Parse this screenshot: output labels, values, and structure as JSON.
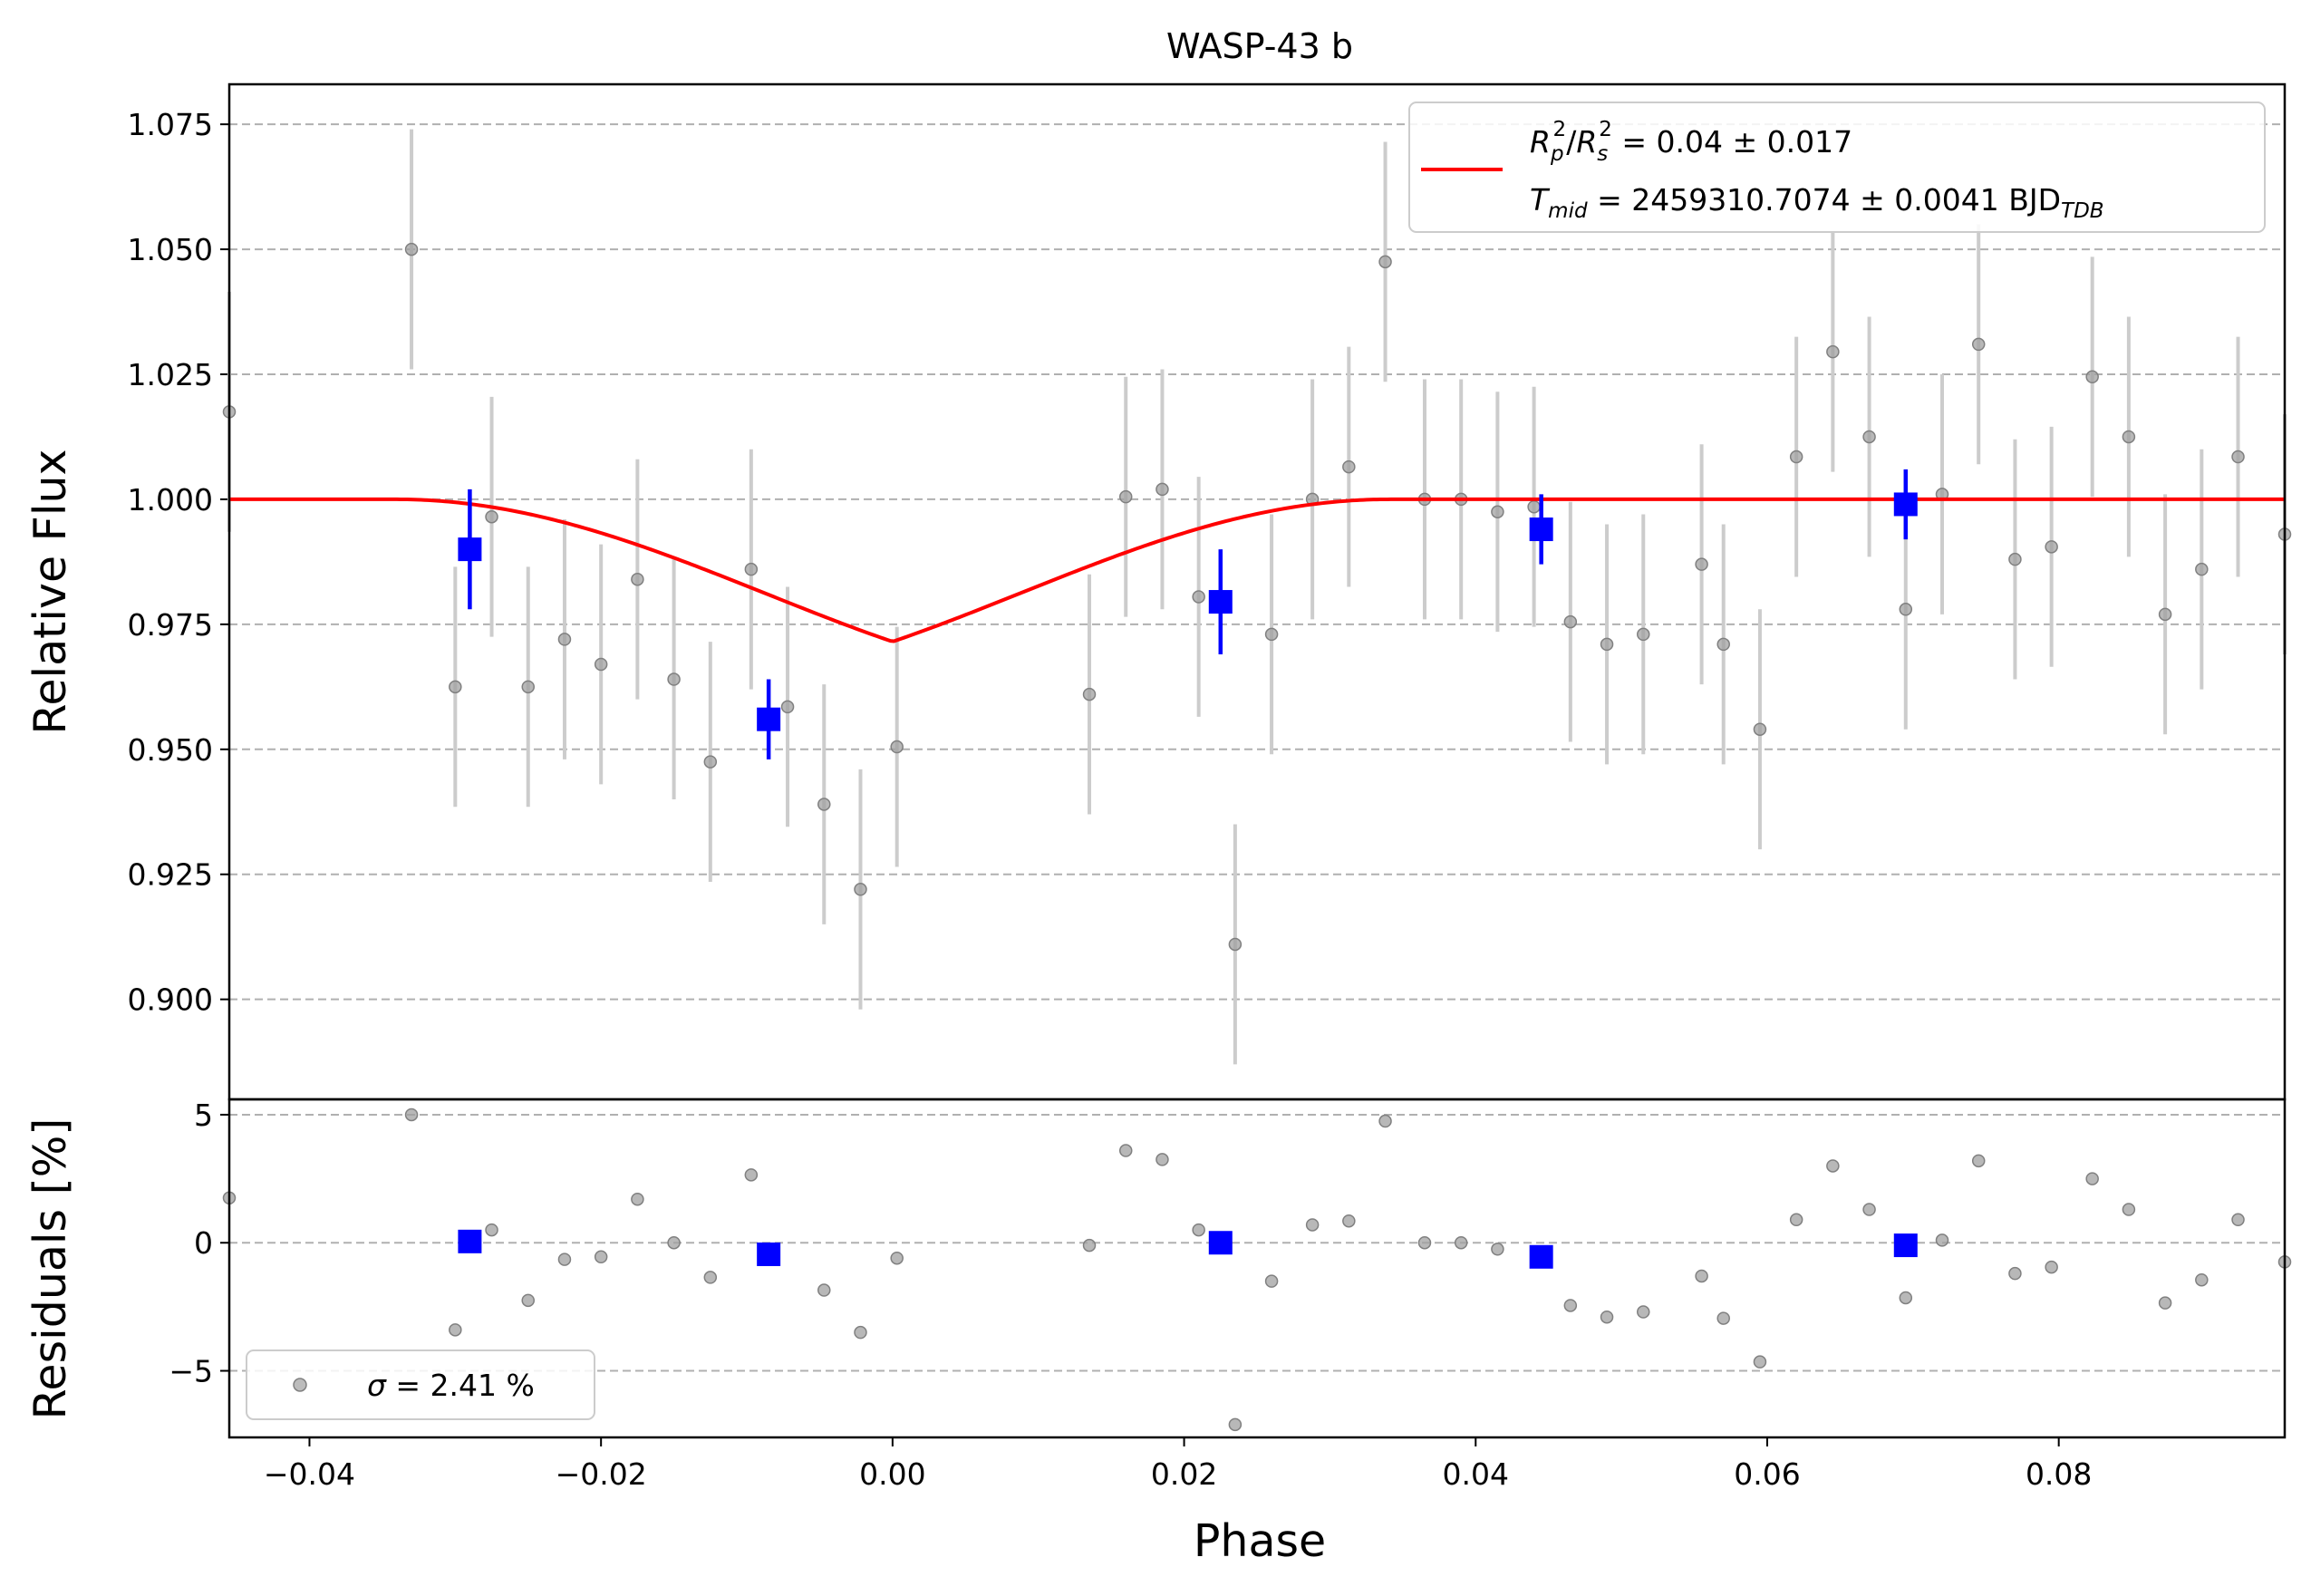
{
  "chart_data": {
    "type": "scatter",
    "title": "WASP-43 b",
    "xlabel": "Phase",
    "xlim": [
      -0.0455,
      0.0955
    ],
    "xticks": [
      "−0.04",
      "−0.02",
      "0.00",
      "0.02",
      "0.04",
      "0.06",
      "0.08"
    ],
    "xtick_values": [
      -0.04,
      -0.02,
      0.0,
      0.02,
      0.04,
      0.06,
      0.08
    ],
    "grid": true,
    "top_panel": {
      "ylabel": "Relative Flux",
      "ylim": [
        0.88,
        1.083
      ],
      "yticks": [
        "0.900",
        "0.925",
        "0.950",
        "0.975",
        "1.000",
        "1.025",
        "1.050",
        "1.075"
      ],
      "ytick_values": [
        0.9,
        0.925,
        0.95,
        0.975,
        1.0,
        1.025,
        1.05,
        1.075
      ],
      "legend": {
        "placement": "upper-right",
        "line1_lhs": "R",
        "line1_rhs": " = 0.04 ± 0.017",
        "line2_lhs": "T",
        "line2_sub": "mid",
        "line2_rhs": " = 2459310.7074 ± 0.0041 BJD",
        "line2_unit_sub": "TDB"
      },
      "colors": {
        "data": "#a0a0a0",
        "binned": "#0000ff",
        "model": "#ff0000",
        "errorbar": "#cccccc"
      },
      "data_error": 0.024,
      "data": [
        [
          -0.0455,
          1.0175
        ],
        [
          -0.033,
          1.05
        ],
        [
          -0.03,
          0.9625
        ],
        [
          -0.0275,
          0.9965
        ],
        [
          -0.025,
          0.9625
        ],
        [
          -0.0225,
          0.972
        ],
        [
          -0.02,
          0.967
        ],
        [
          -0.0175,
          0.984
        ],
        [
          -0.015,
          0.964
        ],
        [
          -0.0125,
          0.9475
        ],
        [
          -0.0097,
          0.986
        ],
        [
          -0.0072,
          0.9585
        ],
        [
          -0.0047,
          0.939
        ],
        [
          -0.0022,
          0.922
        ],
        [
          0.0003,
          0.9505
        ],
        [
          0.0135,
          0.961
        ],
        [
          0.016,
          1.0005
        ],
        [
          0.0185,
          1.002
        ],
        [
          0.021,
          0.9805
        ],
        [
          0.0235,
          0.911
        ],
        [
          0.026,
          0.973
        ],
        [
          0.0288,
          1.0
        ],
        [
          0.0313,
          1.0065
        ],
        [
          0.0338,
          1.0475
        ],
        [
          0.0365,
          1.0
        ],
        [
          0.039,
          1.0
        ],
        [
          0.0415,
          0.9975
        ],
        [
          0.044,
          0.9985
        ],
        [
          0.0465,
          0.9755
        ],
        [
          0.049,
          0.971
        ],
        [
          0.0515,
          0.973
        ],
        [
          0.0555,
          0.987
        ],
        [
          0.057,
          0.971
        ],
        [
          0.0595,
          0.954
        ],
        [
          0.062,
          1.0085
        ],
        [
          0.0645,
          1.0295
        ],
        [
          0.067,
          1.0125
        ],
        [
          0.0695,
          0.978
        ],
        [
          0.072,
          1.001
        ],
        [
          0.0745,
          1.031
        ],
        [
          0.077,
          0.988
        ],
        [
          0.0795,
          0.9905
        ],
        [
          0.0823,
          1.0245
        ],
        [
          0.0848,
          1.0125
        ],
        [
          0.0873,
          0.977
        ],
        [
          0.0898,
          0.986
        ],
        [
          0.0923,
          1.0085
        ],
        [
          0.0955,
          0.993
        ]
      ],
      "binned": [
        [
          -0.029,
          0.99,
          0.012
        ],
        [
          -0.0085,
          0.956,
          0.008
        ],
        [
          0.0225,
          0.9795,
          0.0105
        ],
        [
          0.0445,
          0.994,
          0.007
        ],
        [
          0.0695,
          0.999,
          0.007
        ]
      ],
      "model": {
        "baseline": 1.0,
        "depth_min": 0.957,
        "t_mid": 0.0,
        "t1": -0.0341,
        "t2": -0.0165,
        "t3": 0.0165,
        "t4": 0.0341
      }
    },
    "bottom_panel": {
      "ylabel": "Residuals [%]",
      "ylim": [
        -7.6,
        5.6
      ],
      "yticks": [
        "−5",
        "0",
        "5"
      ],
      "ytick_values": [
        -5,
        0,
        5
      ],
      "legend": {
        "placement": "lower-left",
        "label_prefix": "σ",
        "label_rest": " = 2.41 %"
      },
      "residuals": [
        [
          -0.0455,
          1.75
        ],
        [
          -0.033,
          5.0
        ],
        [
          -0.03,
          -3.4
        ],
        [
          -0.0275,
          0.5
        ],
        [
          -0.025,
          -2.25
        ],
        [
          -0.0225,
          -0.65
        ],
        [
          -0.02,
          -0.55
        ],
        [
          -0.0175,
          1.7
        ],
        [
          -0.015,
          0.0
        ],
        [
          -0.0125,
          -1.35
        ],
        [
          -0.0097,
          2.65
        ],
        [
          -0.0047,
          -1.85
        ],
        [
          -0.0022,
          -3.5
        ],
        [
          0.0003,
          -0.6
        ],
        [
          0.0135,
          -0.1
        ],
        [
          0.016,
          3.6
        ],
        [
          0.0185,
          3.25
        ],
        [
          0.021,
          0.5
        ],
        [
          0.0235,
          -7.1
        ],
        [
          0.026,
          -1.5
        ],
        [
          0.0288,
          0.7
        ],
        [
          0.0313,
          0.85
        ],
        [
          0.0338,
          4.75
        ],
        [
          0.0365,
          0.0
        ],
        [
          0.039,
          0.0
        ],
        [
          0.0415,
          -0.25
        ],
        [
          0.0465,
          -2.45
        ],
        [
          0.049,
          -2.9
        ],
        [
          0.0515,
          -2.7
        ],
        [
          0.0555,
          -1.3
        ],
        [
          0.057,
          -2.95
        ],
        [
          0.0595,
          -4.65
        ],
        [
          0.062,
          0.9
        ],
        [
          0.0645,
          3.0
        ],
        [
          0.067,
          1.3
        ],
        [
          0.0695,
          -2.15
        ],
        [
          0.072,
          0.1
        ],
        [
          0.0745,
          3.2
        ],
        [
          0.077,
          -1.2
        ],
        [
          0.0795,
          -0.95
        ],
        [
          0.0823,
          2.5
        ],
        [
          0.0848,
          1.3
        ],
        [
          0.0873,
          -2.35
        ],
        [
          0.0898,
          -1.45
        ],
        [
          0.0923,
          0.9
        ],
        [
          0.0955,
          -0.75
        ]
      ],
      "binned_residuals": [
        [
          -0.029,
          0.05
        ],
        [
          -0.0085,
          -0.45
        ],
        [
          0.0225,
          0.0
        ],
        [
          0.0445,
          -0.55
        ],
        [
          0.0695,
          -0.1
        ]
      ]
    }
  }
}
